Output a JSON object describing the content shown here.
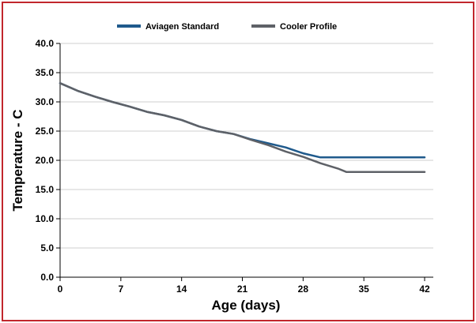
{
  "chart_data": {
    "type": "line",
    "title": "",
    "xlabel": "Age (days)",
    "ylabel": "Temperature - C",
    "xlim": [
      0,
      43
    ],
    "ylim": [
      0,
      40
    ],
    "xticks": [
      0,
      7,
      14,
      21,
      28,
      35,
      42
    ],
    "xtick_labels": [
      "0",
      "7",
      "14",
      "21",
      "28",
      "35",
      "42"
    ],
    "yticks": [
      0,
      5,
      10,
      15,
      20,
      25,
      30,
      35,
      40
    ],
    "ytick_labels": [
      "0.0",
      "5.0",
      "10.0",
      "15.0",
      "20.0",
      "25.0",
      "30.0",
      "35.0",
      "40.0"
    ],
    "grid": "horizontal",
    "legend_position": "top-center",
    "series": [
      {
        "name": "Aviagen Standard",
        "color": "#1f5a8c",
        "x": [
          0,
          2,
          4,
          6,
          8,
          10,
          12,
          14,
          16,
          18,
          20,
          22,
          24,
          26,
          28,
          30,
          32,
          34,
          36,
          38,
          40,
          42
        ],
        "y": [
          33.2,
          31.9,
          30.9,
          30.0,
          29.2,
          28.3,
          27.7,
          26.9,
          25.8,
          25.0,
          24.5,
          23.6,
          22.9,
          22.2,
          21.2,
          20.5,
          20.5,
          20.5,
          20.5,
          20.5,
          20.5,
          20.5
        ]
      },
      {
        "name": "Cooler Profile",
        "color": "#5e6167",
        "x": [
          0,
          2,
          4,
          6,
          8,
          10,
          12,
          14,
          16,
          18,
          20,
          22,
          24,
          26,
          28,
          30,
          32,
          33,
          35,
          37,
          40,
          42
        ],
        "y": [
          33.2,
          31.9,
          30.9,
          30.0,
          29.2,
          28.3,
          27.7,
          26.9,
          25.8,
          25.0,
          24.5,
          23.5,
          22.6,
          21.5,
          20.6,
          19.5,
          18.6,
          18.0,
          18.0,
          18.0,
          18.0,
          18.0
        ]
      }
    ]
  }
}
